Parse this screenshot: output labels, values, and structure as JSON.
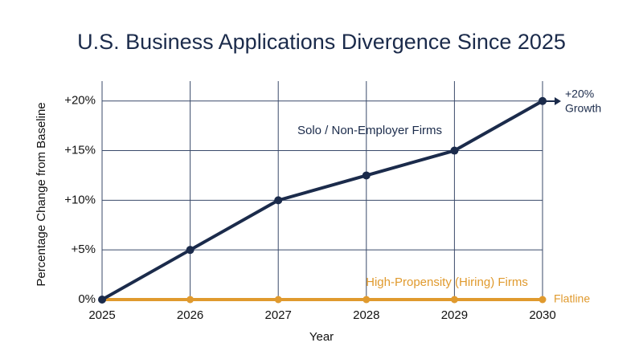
{
  "chart_data": {
    "type": "line",
    "title": "U.S. Business Applications Divergence Since 2025",
    "x_label": "Year",
    "y_label": "Percentage Change from Baseline",
    "x": [
      2025,
      2026,
      2027,
      2028,
      2029,
      2030
    ],
    "xlim": [
      2025,
      2030
    ],
    "xticks": [
      2025,
      2026,
      2027,
      2028,
      2029,
      2030
    ],
    "ylim": [
      0,
      22
    ],
    "yticks": [
      {
        "value": 0,
        "label": "0%"
      },
      {
        "value": 5,
        "label": "+5%"
      },
      {
        "value": 10,
        "label": "+10%"
      },
      {
        "value": 15,
        "label": "+15%"
      },
      {
        "value": 20,
        "label": "+20%"
      }
    ],
    "grid": true,
    "series": [
      {
        "name": "Solo / Non-Employer Firms",
        "color": "#1b2b4b",
        "values": [
          0,
          5,
          10,
          12.5,
          15,
          20
        ]
      },
      {
        "name": "High-Propensity (Hiring) Firms",
        "color": "#e09a2e",
        "values": [
          0,
          0,
          0,
          0,
          0,
          0
        ]
      }
    ],
    "end_labels": [
      [
        "+20%",
        "Growth"
      ],
      [
        "Flatline"
      ]
    ]
  }
}
